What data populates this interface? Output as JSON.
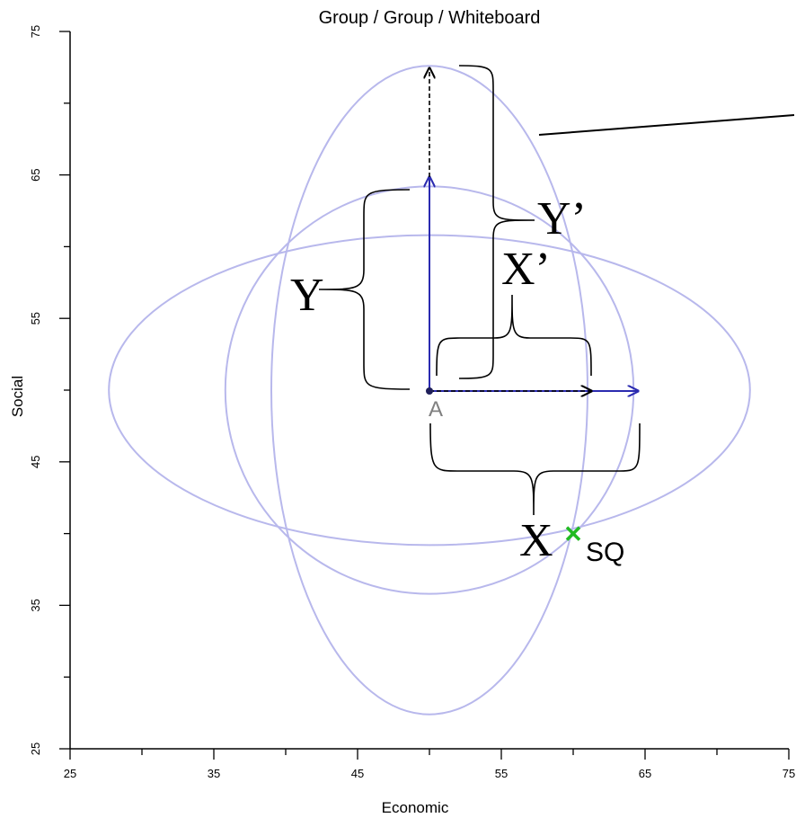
{
  "title": "Group / Group / Whiteboard",
  "axes": {
    "xlabel": "Economic",
    "ylabel": "Social",
    "xlim": [
      25,
      75
    ],
    "ylim": [
      25,
      75
    ],
    "x_ticks": [
      "25",
      "35",
      "45",
      "55",
      "65",
      "75"
    ],
    "y_ticks": [
      "25",
      "35",
      "45",
      "55",
      "65",
      "75"
    ]
  },
  "points": {
    "ideal": {
      "label": "A",
      "x": 50,
      "y": 50,
      "color": "#1f1f5a"
    },
    "status_quo": {
      "label": "SQ",
      "x": 60,
      "y": 40,
      "color": "#22bb22"
    }
  },
  "ellipses": [
    {
      "cx": 50,
      "cy": 50,
      "rx": 22.3,
      "ry": 10.8
    },
    {
      "cx": 50,
      "cy": 50,
      "rx": 14.2,
      "ry": 14.2
    },
    {
      "cx": 50,
      "cy": 50,
      "rx": 11.0,
      "ry": 22.6
    }
  ],
  "colors": {
    "ellipse": "#b8b8ec",
    "vector": "#2b2bb0",
    "axis": "#000000",
    "status_quo": "#22bb22"
  },
  "annotations": {
    "x_label": "X",
    "y_label": "Y",
    "x_prime_label": "X’",
    "y_prime_label": "Y’"
  }
}
